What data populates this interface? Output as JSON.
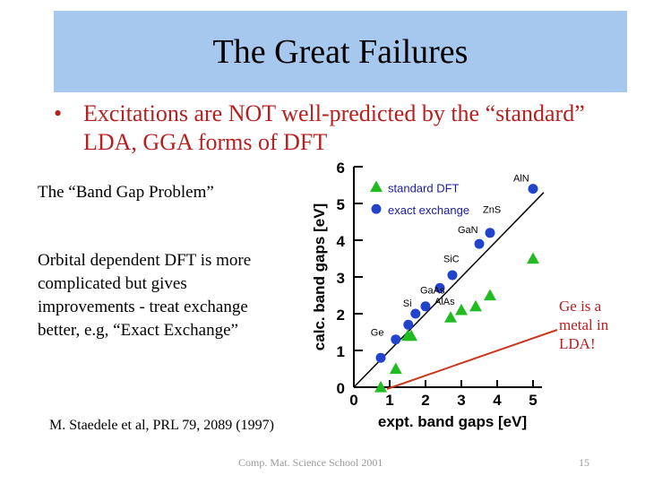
{
  "slide": {
    "title": "The Great Failures",
    "bullet_dot": "•",
    "bullet_text": "Excitations are NOT well-predicted by the “standard” LDA, GGA forms of DFT",
    "band_gap_label": "The “Band Gap Problem”",
    "orbital_text": "Orbital dependent DFT is more complicated but gives improvements - treat exchange better, e.g, “Exact Exchange”",
    "ge_note": "Ge is a metal in LDA!",
    "reference": "M. Staedele et al, PRL 79, 2089 (1997)",
    "footer": "Comp. Mat. Science School 2001",
    "page_number": "15"
  },
  "chart_data": {
    "type": "scatter",
    "xlabel": "expt. band gaps [eV]",
    "ylabel": "calc. band gaps [eV]",
    "xlim": [
      0,
      5
    ],
    "ylim": [
      0,
      6
    ],
    "xticks": [
      "0",
      "1",
      "2",
      "3",
      "4",
      "5"
    ],
    "yticks": [
      "0",
      "1",
      "2",
      "3",
      "4",
      "5",
      "6"
    ],
    "legend": [
      {
        "name": "standard DFT",
        "marker": "triangle",
        "color": "#22bb22"
      },
      {
        "name": "exact exchange",
        "marker": "circle",
        "color": "#2244cc"
      }
    ],
    "series": [
      {
        "name": "standard DFT",
        "marker": "triangle",
        "color": "#22bb22",
        "points": [
          {
            "x": 0.75,
            "y": 0.0
          },
          {
            "x": 1.17,
            "y": 0.5
          },
          {
            "x": 1.5,
            "y": 1.4
          },
          {
            "x": 1.6,
            "y": 1.4
          },
          {
            "x": 2.7,
            "y": 1.9
          },
          {
            "x": 3.0,
            "y": 2.1
          },
          {
            "x": 3.4,
            "y": 2.2
          },
          {
            "x": 3.8,
            "y": 2.5
          },
          {
            "x": 5.0,
            "y": 3.5
          }
        ]
      },
      {
        "name": "exact exchange",
        "marker": "circle",
        "color": "#2244cc",
        "points": [
          {
            "x": 0.75,
            "y": 0.8
          },
          {
            "x": 1.17,
            "y": 1.3
          },
          {
            "x": 1.52,
            "y": 1.7
          },
          {
            "x": 1.72,
            "y": 2.0
          },
          {
            "x": 2.0,
            "y": 2.2
          },
          {
            "x": 2.4,
            "y": 2.7
          },
          {
            "x": 2.75,
            "y": 3.05
          },
          {
            "x": 3.5,
            "y": 3.9
          },
          {
            "x": 3.8,
            "y": 4.2
          },
          {
            "x": 5.0,
            "y": 5.4
          }
        ]
      }
    ],
    "annotations": [
      "AlN",
      "ZnS",
      "GaN",
      "SiC",
      "GaAs",
      "AlAs",
      "Si",
      "Ge"
    ],
    "diagonal": "y = x",
    "pointer_line_color": "#c8381e",
    "axis_color": "#000000"
  }
}
